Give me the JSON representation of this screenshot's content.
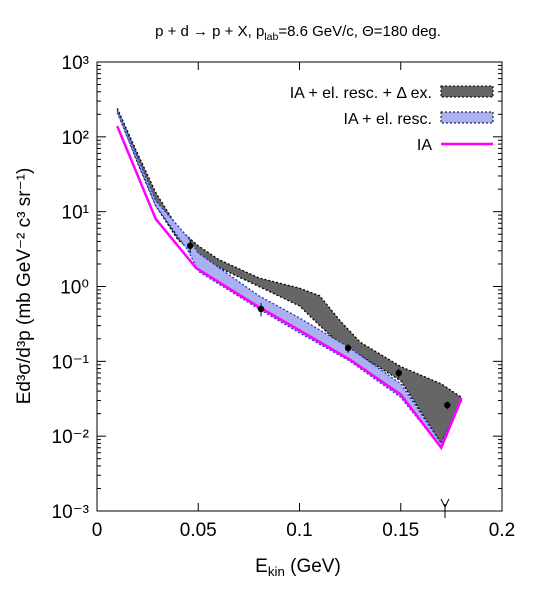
{
  "chart_data": {
    "type": "line",
    "title": [
      "p + d → p + X, p",
      "lab",
      "=8.6 GeV/c, Θ=180 deg."
    ],
    "x_label": [
      "E",
      "kin",
      " (GeV)"
    ],
    "y_label": "Ed³σ/d³p (mb GeV⁻² c³ sr⁻¹)",
    "xlim": [
      0,
      0.2
    ],
    "xticks": [
      0,
      0.05,
      0.1,
      0.15,
      0.2
    ],
    "ylim": [
      0.001,
      1000
    ],
    "log_y": true,
    "yticks": [
      {
        "value": 0.001,
        "label": "10⁻³"
      },
      {
        "value": 0.01,
        "label": "10⁻²"
      },
      {
        "value": 0.1,
        "label": "10⁻¹"
      },
      {
        "value": 1,
        "label": "10⁰"
      },
      {
        "value": 10,
        "label": "10¹"
      },
      {
        "value": 100,
        "label": "10²"
      },
      {
        "value": 1000,
        "label": "10³"
      }
    ],
    "legend": "top-right",
    "series": [
      {
        "name": "IA + el. resc. + Δ ex.",
        "kind": "band",
        "color": "#666666",
        "x": [
          0.01,
          0.02,
          0.029,
          0.04,
          0.05,
          0.06,
          0.08,
          0.1,
          0.11,
          0.12,
          0.13,
          0.15,
          0.17,
          0.18
        ],
        "upper": [
          240,
          60,
          18,
          6,
          3.5,
          2.3,
          1.3,
          0.95,
          0.75,
          0.35,
          0.18,
          0.085,
          0.05,
          0.033
        ],
        "lower": [
          220,
          45,
          12,
          4.2,
          2.6,
          1.8,
          1.0,
          0.55,
          0.3,
          0.17,
          0.12,
          0.055,
          0.008,
          0.03
        ]
      },
      {
        "name": "IA + el. resc.",
        "kind": "band",
        "color": "#aab0f0",
        "x": [
          0.01,
          0.029,
          0.045,
          0.05,
          0.08,
          0.1,
          0.125,
          0.15,
          0.17,
          0.18
        ],
        "upper": [
          230,
          14,
          4.5,
          2.8,
          0.75,
          0.38,
          0.15,
          0.05,
          0.008,
          0.032
        ],
        "lower": [
          210,
          12,
          3,
          1.6,
          0.5,
          0.24,
          0.1,
          0.033,
          0.007,
          0.03
        ]
      },
      {
        "name": "IA",
        "kind": "line",
        "color": "#ff00ff",
        "x": [
          0.01,
          0.029,
          0.049,
          0.08,
          0.1,
          0.125,
          0.15,
          0.17,
          0.18
        ],
        "values": [
          139,
          8,
          1.76,
          0.53,
          0.26,
          0.105,
          0.036,
          0.007,
          0.032
        ]
      },
      {
        "kind": "points",
        "color": "#000000",
        "x": [
          0.046,
          0.081,
          0.124,
          0.149,
          0.173
        ],
        "values": [
          3.5,
          0.5,
          0.15,
          0.07,
          0.026
        ],
        "errors": [
          0.7,
          0.1,
          0.02,
          0.01,
          0.003
        ]
      }
    ]
  }
}
